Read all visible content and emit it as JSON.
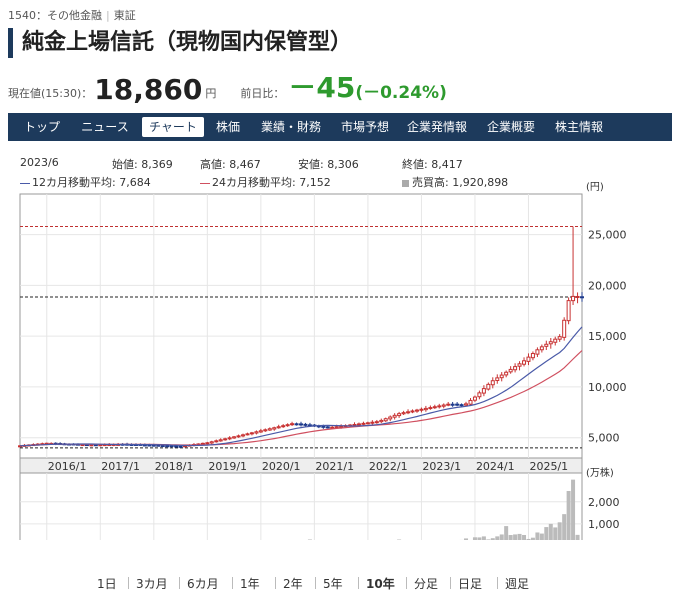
{
  "header": {
    "code": "1540",
    "category": "：その他金融",
    "market": "東証",
    "title": "純金上場信託（現物国内保管型）"
  },
  "quote": {
    "label": "現在値(15:30)：",
    "price": "18,860",
    "unit": "円",
    "change_label": "前日比：",
    "change": "－45",
    "change_pct": "(－0.24%)"
  },
  "nav": {
    "items": [
      "トップ",
      "ニュース",
      "チャート",
      "株価",
      "業績・財務",
      "市場予想",
      "企業発情報",
      "企業概要",
      "株主情報"
    ],
    "active_index": 2
  },
  "info": {
    "month": "2023/6",
    "open": "始値: 8,369",
    "high": "高値: 8,467",
    "low": "安値: 8,306",
    "close": "終値: 8,417",
    "ma12": "12カ月移動平均: 7,684",
    "ma24": "24カ月移動平均: 7,152",
    "volume": "売買高: 1,920,898"
  },
  "periods": [
    "1日",
    "3カ月",
    "6カ月",
    "1年",
    "2年",
    "5年",
    "10年",
    "分足",
    "日足",
    "週足"
  ],
  "active_period": "10年",
  "chart_data": {
    "type": "candlestick",
    "price_unit": "(円)",
    "volume_unit": "(万株)",
    "price_ylim": [
      3000,
      29000
    ],
    "price_ticks": [
      5000,
      10000,
      15000,
      20000,
      25000
    ],
    "price_tick_labels": [
      "5,000",
      "10,000",
      "15,000",
      "20,000",
      "25,000"
    ],
    "volume_ylim": [
      0,
      3300
    ],
    "volume_ticks": [
      1000,
      2000
    ],
    "volume_tick_labels": [
      "1,000",
      "2,000"
    ],
    "x_labels": [
      "2016/1",
      "2017/1",
      "2018/1",
      "2019/1",
      "2020/1",
      "2021/1",
      "2022/1",
      "2023/1",
      "2024/1",
      "2025/1"
    ],
    "reference_lines": {
      "high": 25800,
      "current": 18860,
      "low": 4000
    },
    "series": [
      {
        "name": "12カ月移動平均",
        "color": "#4a5aa8"
      },
      {
        "name": "24カ月移動平均",
        "color": "#d05060"
      }
    ],
    "close_anchors": [
      [
        2015.5,
        4200
      ],
      [
        2016.0,
        4450
      ],
      [
        2016.8,
        4300
      ],
      [
        2017.5,
        4350
      ],
      [
        2018.5,
        4150
      ],
      [
        2019.0,
        4500
      ],
      [
        2019.6,
        5200
      ],
      [
        2020.6,
        6400
      ],
      [
        2021.3,
        6000
      ],
      [
        2022.2,
        6600
      ],
      [
        2022.6,
        7400
      ],
      [
        2023.5,
        8300
      ],
      [
        2023.8,
        8200
      ],
      [
        2024.0,
        9000
      ],
      [
        2024.3,
        10500
      ],
      [
        2024.9,
        12500
      ],
      [
        2025.2,
        13800
      ],
      [
        2025.6,
        15000
      ],
      [
        2025.75,
        18500
      ],
      [
        2025.85,
        19000
      ],
      [
        2025.95,
        18860
      ]
    ],
    "volume_anchors": [
      [
        2015.5,
        60
      ],
      [
        2018.5,
        60
      ],
      [
        2019.5,
        120
      ],
      [
        2020.5,
        250
      ],
      [
        2021.5,
        200
      ],
      [
        2022.5,
        230
      ],
      [
        2023.5,
        170
      ],
      [
        2024.0,
        320
      ],
      [
        2024.5,
        520
      ],
      [
        2025.0,
        380
      ],
      [
        2025.5,
        900
      ],
      [
        2025.8,
        2200
      ],
      [
        2025.95,
        300
      ]
    ],
    "spikes": {
      "2025.833": {
        "high": 25800,
        "volume": 3000
      },
      "2025.75": {
        "volume": 1400
      },
      "2025.417": {
        "volume": 1000
      },
      "2024.25": {
        "high": 12500,
        "volume": 1500
      },
      "2024.583": {
        "volume": 900
      }
    }
  }
}
